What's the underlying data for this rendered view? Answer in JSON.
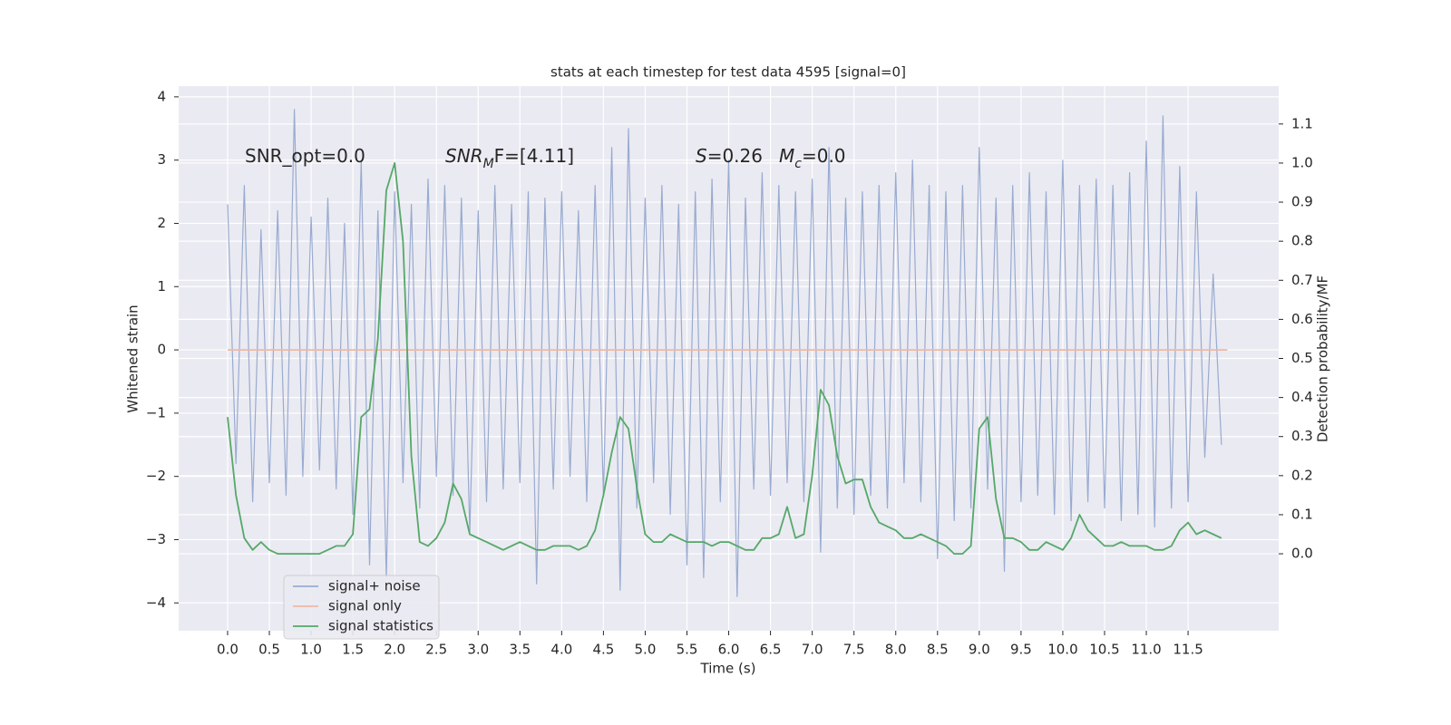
{
  "chart_data": {
    "type": "line",
    "title": "stats at each timestep for test data 4595 [signal=0]",
    "xlabel": "Time (s)",
    "ylabel": "Whitened strain",
    "y2label": "Detection probability/MF",
    "annotations": [
      [
        "SNR_opt=0.0"
      ],
      [
        "SNR",
        "M",
        "F=[4.11]"
      ],
      [
        "S",
        "=0.26",
        "M",
        "c",
        "=0.0"
      ]
    ],
    "xlim": [
      -0.586,
      12.585
    ],
    "ylim": [
      -4.44,
      4.17
    ],
    "y2lim": [
      -0.197,
      1.197
    ],
    "xticks": [
      {
        "value": 0,
        "label": "0.0"
      },
      0.5,
      {
        "value": 1,
        "label": "1.0"
      },
      1.5,
      {
        "value": 2,
        "label": "2.0"
      },
      2.5,
      {
        "value": 3,
        "label": "3.0"
      },
      3.5,
      {
        "value": 4,
        "label": "4.0"
      },
      4.5,
      {
        "value": 5,
        "label": "5.0"
      },
      5.5,
      {
        "value": 6,
        "label": "6.0"
      },
      6.5,
      {
        "value": 7,
        "label": "7.0"
      },
      7.5,
      {
        "value": 8,
        "label": "8.0"
      },
      8.5,
      {
        "value": 9,
        "label": "9.0"
      },
      9.5,
      {
        "value": 10,
        "label": "10.0"
      },
      10.5,
      {
        "value": 11,
        "label": "11.0"
      },
      11.5
    ],
    "yticks": [
      {
        "value": -4,
        "label": "−4"
      },
      {
        "value": -3,
        "label": "−3"
      },
      {
        "value": -2,
        "label": "−2"
      },
      {
        "value": -1,
        "label": "−1"
      },
      0,
      1,
      2,
      3,
      4
    ],
    "y2ticks": [
      {
        "value": 0,
        "label": "0.0"
      },
      0.1,
      0.2,
      0.3,
      0.4,
      0.5,
      0.6,
      0.7,
      0.8,
      0.9,
      {
        "value": 1,
        "label": "1.0"
      },
      1.1
    ],
    "grid": true,
    "legend": "lower left",
    "x": [
      0,
      0.1,
      0.2,
      0.3,
      0.4,
      0.5,
      0.6,
      0.7,
      0.8,
      0.9,
      1,
      1.1,
      1.2,
      1.3,
      1.4,
      1.5,
      1.6,
      1.7,
      1.8,
      1.9,
      2,
      2.1,
      2.2,
      2.3,
      2.4,
      2.5,
      2.6,
      2.7,
      2.8,
      2.9,
      3,
      3.1,
      3.2,
      3.3,
      3.4,
      3.5,
      3.6,
      3.7,
      3.8,
      3.9,
      4,
      4.1,
      4.2,
      4.3,
      4.4,
      4.5,
      4.6,
      4.7,
      4.8,
      4.9,
      5,
      5.1,
      5.2,
      5.3,
      5.4,
      5.5,
      5.6,
      5.7,
      5.8,
      5.9,
      6,
      6.1,
      6.2,
      6.3,
      6.4,
      6.5,
      6.6,
      6.7,
      6.8,
      6.9,
      7,
      7.1,
      7.2,
      7.3,
      7.4,
      7.5,
      7.6,
      7.7,
      7.8,
      7.9,
      8,
      8.1,
      8.2,
      8.3,
      8.4,
      8.5,
      8.6,
      8.7,
      8.8,
      8.9,
      9,
      9.1,
      9.2,
      9.3,
      9.4,
      9.5,
      9.6,
      9.7,
      9.8,
      9.9,
      10,
      10.1,
      10.2,
      10.3,
      10.4,
      10.5,
      10.6,
      10.7,
      10.8,
      10.9,
      11,
      11.1,
      11.2,
      11.3,
      11.4,
      11.5,
      11.6,
      11.7,
      11.8,
      11.9
    ],
    "series": [
      {
        "name": "signal+ noise",
        "color": "#99abd0",
        "values": [
          2.3,
          -1.8,
          2.6,
          -2.4,
          1.9,
          -2.1,
          2.2,
          -2.3,
          3.8,
          -2.0,
          2.1,
          -1.9,
          2.4,
          -2.2,
          2.0,
          -2.6,
          3.0,
          -3.4,
          2.2,
          -3.6,
          2.5,
          -2.1,
          2.3,
          -2.5,
          2.7,
          -2.0,
          2.6,
          -2.3,
          2.4,
          -2.9,
          2.2,
          -2.4,
          2.6,
          -2.2,
          2.3,
          -2.1,
          2.5,
          -3.7,
          2.4,
          -2.2,
          2.5,
          -2.0,
          2.2,
          -2.4,
          2.6,
          -2.3,
          3.2,
          -3.8,
          3.5,
          -2.5,
          2.4,
          -2.1,
          2.6,
          -2.6,
          2.3,
          -3.4,
          2.5,
          -3.6,
          2.7,
          -2.4,
          3.0,
          -3.9,
          2.4,
          -2.2,
          2.8,
          -2.3,
          2.6,
          -2.1,
          2.5,
          -2.4,
          2.7,
          -3.2,
          3.2,
          -2.5,
          2.4,
          -2.6,
          2.5,
          -2.3,
          2.6,
          -2.5,
          2.8,
          -2.1,
          3.0,
          -2.4,
          2.6,
          -3.3,
          2.5,
          -2.7,
          2.6,
          -2.5,
          3.2,
          -2.2,
          2.4,
          -3.5,
          2.6,
          -2.4,
          2.8,
          -2.3,
          2.5,
          -2.6,
          3.0,
          -2.7,
          2.6,
          -2.4,
          2.7,
          -2.5,
          2.6,
          -2.7,
          2.8,
          -2.6,
          3.3,
          -2.8,
          3.7,
          -2.5,
          2.9,
          -2.4,
          2.5,
          -1.7,
          1.2,
          -1.5
        ]
      },
      {
        "name": "signal only",
        "color": "#eeb9a4",
        "x": [
          0,
          11.97
        ],
        "values": [
          0,
          0
        ]
      },
      {
        "name": "signal statistics",
        "color": "#55a868",
        "axis": "y2",
        "values": [
          0.35,
          0.15,
          0.04,
          0.01,
          0.03,
          0.01,
          0,
          0,
          0,
          0,
          0,
          0,
          0.01,
          0.02,
          0.02,
          0.05,
          0.35,
          0.37,
          0.55,
          0.93,
          1.0,
          0.8,
          0.25,
          0.03,
          0.02,
          0.04,
          0.08,
          0.18,
          0.14,
          0.05,
          0.04,
          0.03,
          0.02,
          0.01,
          0.02,
          0.03,
          0.02,
          0.01,
          0.01,
          0.02,
          0.02,
          0.02,
          0.01,
          0.02,
          0.06,
          0.15,
          0.26,
          0.35,
          0.32,
          0.17,
          0.05,
          0.03,
          0.03,
          0.05,
          0.04,
          0.03,
          0.03,
          0.03,
          0.02,
          0.03,
          0.03,
          0.02,
          0.01,
          0.01,
          0.04,
          0.04,
          0.05,
          0.12,
          0.04,
          0.05,
          0.2,
          0.42,
          0.38,
          0.25,
          0.18,
          0.19,
          0.19,
          0.12,
          0.08,
          0.07,
          0.06,
          0.04,
          0.04,
          0.05,
          0.04,
          0.03,
          0.02,
          0,
          0,
          0.02,
          0.32,
          0.35,
          0.14,
          0.04,
          0.04,
          0.03,
          0.01,
          0.01,
          0.03,
          0.02,
          0.01,
          0.04,
          0.1,
          0.06,
          0.04,
          0.02,
          0.02,
          0.03,
          0.02,
          0.02,
          0.02,
          0.01,
          0.01,
          0.02,
          0.06,
          0.08,
          0.05,
          0.06,
          0.05,
          0.04
        ]
      }
    ]
  }
}
